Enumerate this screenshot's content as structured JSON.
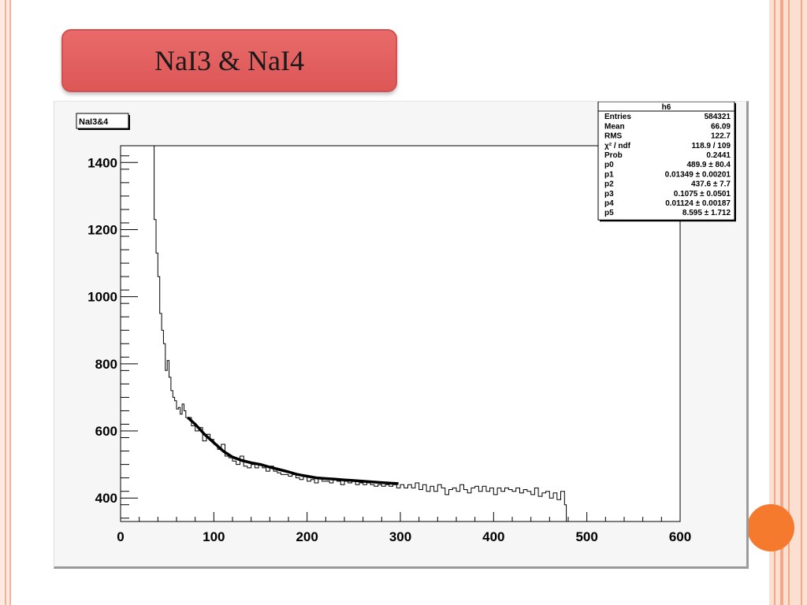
{
  "slide": {
    "title": "NaI3 & NaI4"
  },
  "colors": {
    "title_fill": "#e35f5f",
    "accent_dot": "#f57a2e",
    "side_stripe": "#f2a98a"
  },
  "chart_data": {
    "type": "line",
    "title": "NaI3&4",
    "xlabel": "",
    "ylabel": "",
    "xlim": [
      0,
      600
    ],
    "ylim": [
      330,
      1450
    ],
    "x_ticks": [
      "0",
      "100",
      "200",
      "300",
      "400",
      "500",
      "600"
    ],
    "y_ticks": [
      "400",
      "600",
      "800",
      "1000",
      "1200",
      "1400"
    ],
    "grid": false,
    "legend": "none",
    "series": [
      {
        "kind": "histogram",
        "bin_width": 2,
        "x_start": 30,
        "points": [
          [
            30,
            1450
          ],
          [
            34,
            1450
          ],
          [
            36,
            1230
          ],
          [
            38,
            1130
          ],
          [
            40,
            1060
          ],
          [
            42,
            950
          ],
          [
            44,
            900
          ],
          [
            46,
            860
          ],
          [
            48,
            780
          ],
          [
            50,
            810
          ],
          [
            52,
            760
          ],
          [
            54,
            720
          ],
          [
            56,
            700
          ],
          [
            58,
            690
          ],
          [
            60,
            665
          ],
          [
            62,
            670
          ],
          [
            64,
            650
          ],
          [
            66,
            680
          ],
          [
            68,
            660
          ],
          [
            70,
            640
          ],
          [
            72,
            640
          ],
          [
            76,
            615
          ],
          [
            80,
            600
          ],
          [
            84,
            610
          ],
          [
            88,
            570
          ],
          [
            92,
            590
          ],
          [
            96,
            575
          ],
          [
            100,
            560
          ],
          [
            104,
            545
          ],
          [
            108,
            560
          ],
          [
            112,
            525
          ],
          [
            116,
            520
          ],
          [
            120,
            510
          ],
          [
            124,
            500
          ],
          [
            128,
            525
          ],
          [
            132,
            495
          ],
          [
            136,
            490
          ],
          [
            140,
            500
          ],
          [
            144,
            490
          ],
          [
            148,
            500
          ],
          [
            152,
            490
          ],
          [
            156,
            480
          ],
          [
            160,
            495
          ],
          [
            164,
            480
          ],
          [
            168,
            475
          ],
          [
            172,
            470
          ],
          [
            176,
            470
          ],
          [
            180,
            465
          ],
          [
            184,
            470
          ],
          [
            188,
            460
          ],
          [
            192,
            455
          ],
          [
            196,
            465
          ],
          [
            200,
            450
          ],
          [
            204,
            455
          ],
          [
            208,
            445
          ],
          [
            212,
            460
          ],
          [
            216,
            450
          ],
          [
            220,
            450
          ],
          [
            224,
            445
          ],
          [
            228,
            455
          ],
          [
            232,
            450
          ],
          [
            236,
            440
          ],
          [
            240,
            450
          ],
          [
            244,
            445
          ],
          [
            248,
            450
          ],
          [
            252,
            440
          ],
          [
            256,
            445
          ],
          [
            260,
            440
          ],
          [
            264,
            445
          ],
          [
            268,
            440
          ],
          [
            272,
            435
          ],
          [
            276,
            440
          ],
          [
            280,
            435
          ],
          [
            284,
            440
          ],
          [
            288,
            435
          ],
          [
            292,
            440
          ],
          [
            296,
            430
          ],
          [
            300,
            440
          ],
          [
            304,
            430
          ],
          [
            308,
            440
          ],
          [
            312,
            430
          ],
          [
            316,
            445
          ],
          [
            320,
            425
          ],
          [
            324,
            440
          ],
          [
            328,
            420
          ],
          [
            332,
            435
          ],
          [
            336,
            420
          ],
          [
            340,
            440
          ],
          [
            344,
            430
          ],
          [
            348,
            410
          ],
          [
            352,
            425
          ],
          [
            356,
            430
          ],
          [
            360,
            420
          ],
          [
            364,
            440
          ],
          [
            368,
            425
          ],
          [
            372,
            415
          ],
          [
            376,
            430
          ],
          [
            380,
            435
          ],
          [
            384,
            420
          ],
          [
            388,
            435
          ],
          [
            392,
            420
          ],
          [
            396,
            430
          ],
          [
            400,
            410
          ],
          [
            404,
            430
          ],
          [
            408,
            420
          ],
          [
            412,
            430
          ],
          [
            416,
            425
          ],
          [
            420,
            420
          ],
          [
            424,
            430
          ],
          [
            428,
            415
          ],
          [
            432,
            425
          ],
          [
            436,
            420
          ],
          [
            440,
            410
          ],
          [
            444,
            430
          ],
          [
            448,
            405
          ],
          [
            452,
            415
          ],
          [
            456,
            420
          ],
          [
            460,
            400
          ],
          [
            464,
            415
          ],
          [
            468,
            395
          ],
          [
            472,
            420
          ],
          [
            476,
            380
          ],
          [
            478,
            335
          ]
        ]
      },
      {
        "kind": "fit",
        "points": [
          [
            72,
            640
          ],
          [
            80,
            620
          ],
          [
            90,
            590
          ],
          [
            100,
            565
          ],
          [
            110,
            540
          ],
          [
            120,
            522
          ],
          [
            130,
            512
          ],
          [
            140,
            505
          ],
          [
            150,
            500
          ],
          [
            160,
            492
          ],
          [
            170,
            485
          ],
          [
            180,
            478
          ],
          [
            190,
            470
          ],
          [
            200,
            465
          ],
          [
            210,
            460
          ],
          [
            220,
            458
          ],
          [
            230,
            456
          ],
          [
            240,
            454
          ],
          [
            250,
            452
          ],
          [
            260,
            450
          ],
          [
            270,
            448
          ],
          [
            280,
            446
          ],
          [
            290,
            444
          ],
          [
            298,
            443
          ]
        ]
      }
    ],
    "stats_box": {
      "name": "h6",
      "rows": [
        {
          "label": "Entries",
          "value": "584321"
        },
        {
          "label": "Mean",
          "value": "66.09"
        },
        {
          "label": "RMS",
          "value": "122.7"
        },
        {
          "label": "χ² / ndf",
          "value": "118.9 / 109"
        },
        {
          "label": "Prob",
          "value": "0.2441"
        },
        {
          "label": "p0",
          "value": "489.9 ± 80.4"
        },
        {
          "label": "p1",
          "value": "0.01349 ± 0.00201"
        },
        {
          "label": "p2",
          "value": "437.6 ± 7.7"
        },
        {
          "label": "p3",
          "value": "0.1075 ± 0.0501"
        },
        {
          "label": "p4",
          "value": "0.01124 ± 0.00187"
        },
        {
          "label": "p5",
          "value": "8.595 ± 1.712"
        }
      ]
    }
  }
}
